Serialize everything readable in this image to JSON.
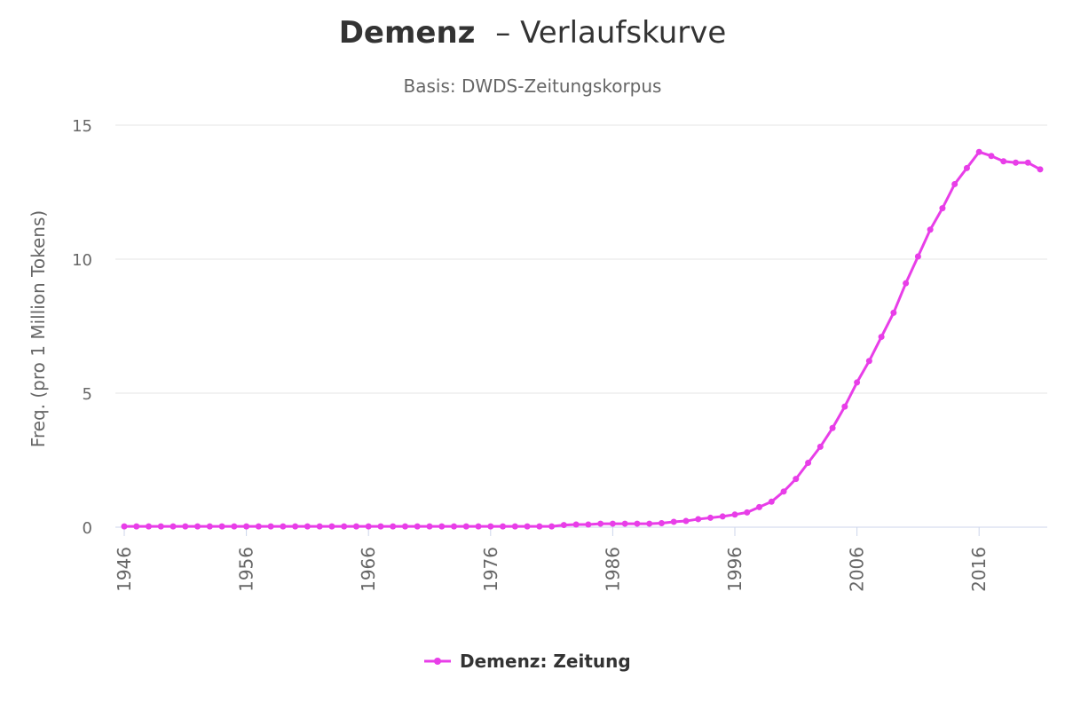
{
  "chart_data": {
    "type": "line",
    "title_bold": "Demenz",
    "title_rest": "– Verlaufskurve",
    "subtitle": "Basis: DWDS-Zeitungskorpus",
    "ylabel": "Freq. (pro 1 Million Tokens)",
    "xlabel": "",
    "xlim": [
      1946,
      2021
    ],
    "ylim": [
      0,
      15
    ],
    "y_ticks": [
      "0",
      "5",
      "10",
      "15"
    ],
    "x_ticks": [
      "1946",
      "1956",
      "1966",
      "1976",
      "1986",
      "1996",
      "2006",
      "2016"
    ],
    "grid": true,
    "legend_position": "bottom-center",
    "color": "#e83ee8",
    "series": [
      {
        "name": "Demenz: Zeitung",
        "x": [
          1946,
          1947,
          1948,
          1949,
          1950,
          1951,
          1952,
          1953,
          1954,
          1955,
          1956,
          1957,
          1958,
          1959,
          1960,
          1961,
          1962,
          1963,
          1964,
          1965,
          1966,
          1967,
          1968,
          1969,
          1970,
          1971,
          1972,
          1973,
          1974,
          1975,
          1976,
          1977,
          1978,
          1979,
          1980,
          1981,
          1982,
          1983,
          1984,
          1985,
          1986,
          1987,
          1988,
          1989,
          1990,
          1991,
          1992,
          1993,
          1994,
          1995,
          1996,
          1997,
          1998,
          1999,
          2000,
          2001,
          2002,
          2003,
          2004,
          2005,
          2006,
          2007,
          2008,
          2009,
          2010,
          2011,
          2012,
          2013,
          2014,
          2015,
          2016,
          2017,
          2018,
          2019,
          2020,
          2021
        ],
        "values": [
          0.03,
          0.03,
          0.03,
          0.03,
          0.03,
          0.03,
          0.03,
          0.03,
          0.03,
          0.03,
          0.03,
          0.03,
          0.03,
          0.03,
          0.03,
          0.03,
          0.03,
          0.03,
          0.03,
          0.03,
          0.03,
          0.03,
          0.03,
          0.03,
          0.03,
          0.03,
          0.03,
          0.03,
          0.03,
          0.03,
          0.03,
          0.03,
          0.03,
          0.03,
          0.03,
          0.03,
          0.08,
          0.1,
          0.1,
          0.13,
          0.13,
          0.13,
          0.13,
          0.13,
          0.15,
          0.2,
          0.23,
          0.3,
          0.35,
          0.4,
          0.47,
          0.55,
          0.75,
          0.95,
          1.33,
          1.8,
          2.4,
          3.0,
          3.7,
          4.5,
          5.4,
          6.2,
          7.1,
          8.0,
          9.1,
          10.1,
          11.1,
          11.9,
          12.8,
          13.4,
          14.0,
          13.85,
          13.65,
          13.6,
          13.6,
          13.35
        ]
      }
    ]
  }
}
